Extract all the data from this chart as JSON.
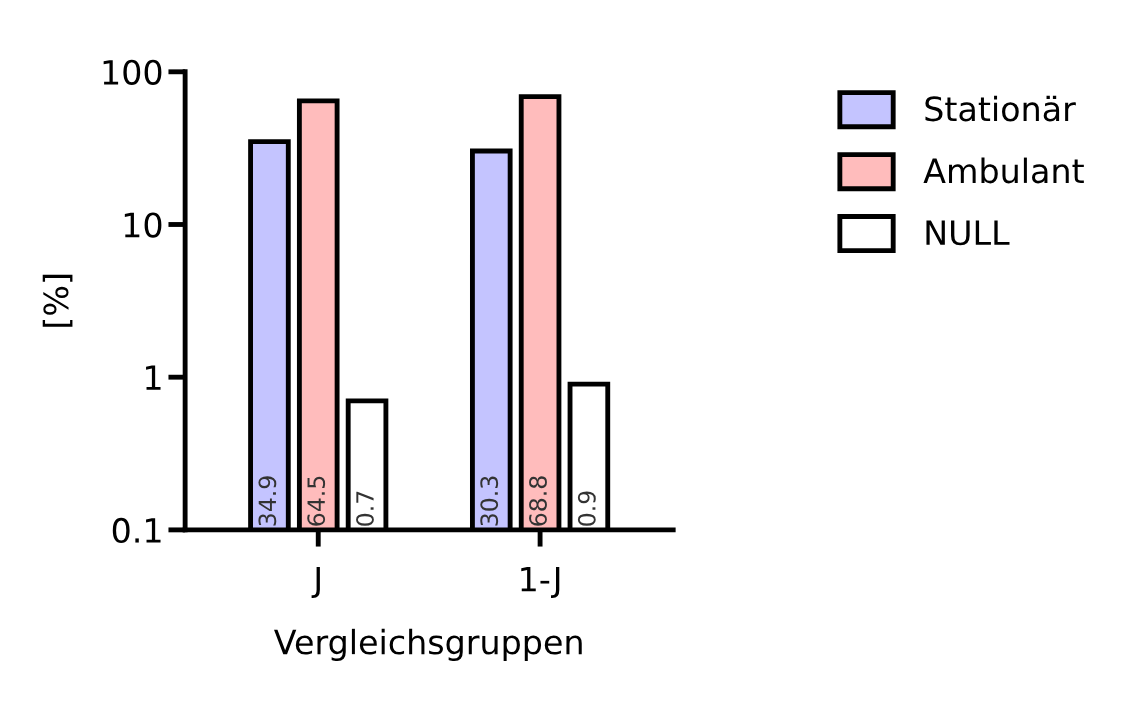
{
  "chart_data": {
    "type": "bar",
    "xlabel": "Vergleichsgruppen",
    "ylabel": "[%]",
    "categories": [
      "J",
      "1-J"
    ],
    "series": [
      {
        "name": "Stationär",
        "color": "#c4c4ff",
        "values": [
          34.9,
          30.3
        ]
      },
      {
        "name": "Ambulant",
        "color": "#ffbcbc",
        "values": [
          64.5,
          68.8
        ]
      },
      {
        "name": "NULL",
        "color": "#ffffff",
        "values": [
          0.7,
          0.9
        ]
      }
    ],
    "log": true,
    "ylim": [
      0.1,
      100
    ],
    "yticks": [
      0.1,
      1,
      10,
      100
    ],
    "data_labels": true,
    "grid": false,
    "legend": "top right"
  }
}
